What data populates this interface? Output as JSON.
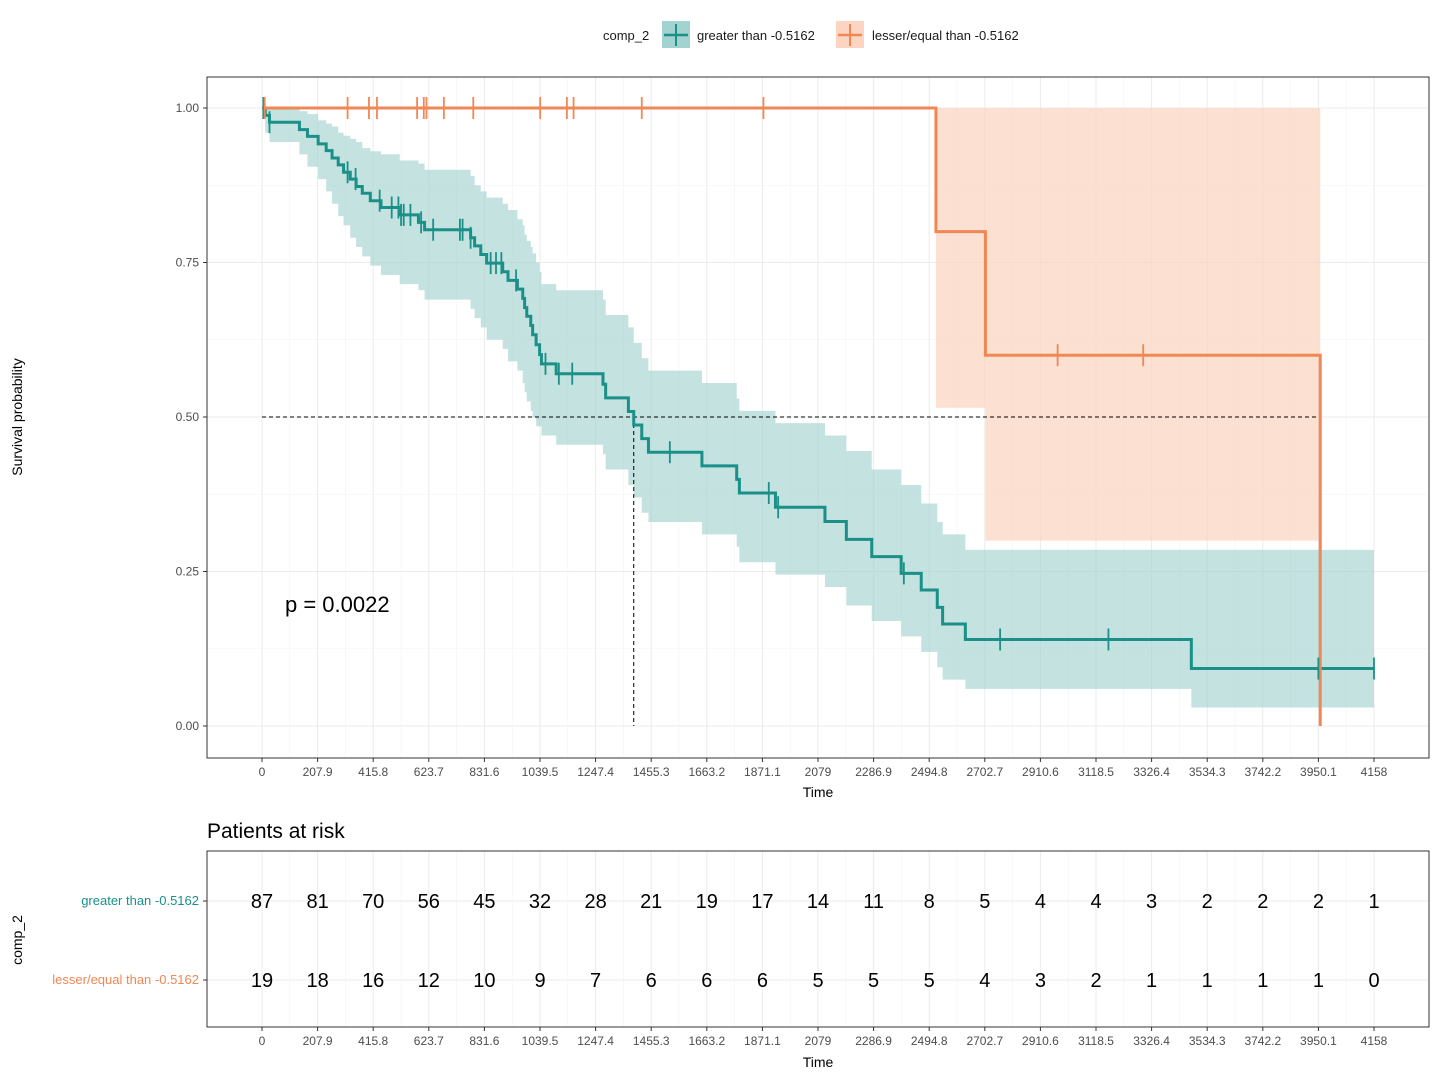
{
  "chart_data": [
    {
      "type": "line",
      "subtype": "kaplan-meier",
      "title": "",
      "xlabel": "Time",
      "ylabel": "Survival probability",
      "xlim": [
        0,
        4158
      ],
      "ylim": [
        0,
        1
      ],
      "x_ticks": [
        "0",
        "207.9",
        "415.8",
        "623.7",
        "831.6",
        "1039.5",
        "1247.4",
        "1455.3",
        "1663.2",
        "1871.1",
        "2079",
        "2286.9",
        "2494.8",
        "2702.7",
        "2910.6",
        "3118.5",
        "3326.4",
        "3534.3",
        "3742.2",
        "3950.1",
        "4158"
      ],
      "y_ticks": [
        "0.00",
        "0.25",
        "0.50",
        "0.75",
        "1.00"
      ],
      "grid": true,
      "legend": {
        "title": "comp_2",
        "position": "top"
      },
      "annotation": "p = 0.0022",
      "median_line": {
        "y": 0.5,
        "x_end": 3957,
        "medians": [
          1390,
          3957
        ]
      },
      "series": [
        {
          "name": "greater than -0.5162",
          "color": "#1a9088",
          "fill": "#a3d3d0",
          "steps": [
            [
              0,
              1.0
            ],
            [
              12,
              0.988
            ],
            [
              28,
              0.977
            ],
            [
              140,
              0.965
            ],
            [
              170,
              0.954
            ],
            [
              210,
              0.942
            ],
            [
              240,
              0.931
            ],
            [
              262,
              0.919
            ],
            [
              285,
              0.908
            ],
            [
              305,
              0.896
            ],
            [
              330,
              0.885
            ],
            [
              352,
              0.873
            ],
            [
              375,
              0.862
            ],
            [
              405,
              0.85
            ],
            [
              445,
              0.839
            ],
            [
              515,
              0.827
            ],
            [
              585,
              0.815
            ],
            [
              608,
              0.803
            ],
            [
              780,
              0.79
            ],
            [
              795,
              0.777
            ],
            [
              818,
              0.763
            ],
            [
              840,
              0.749
            ],
            [
              900,
              0.735
            ],
            [
              920,
              0.721
            ],
            [
              955,
              0.707
            ],
            [
              975,
              0.692
            ],
            [
              982,
              0.677
            ],
            [
              990,
              0.663
            ],
            [
              1005,
              0.648
            ],
            [
              1012,
              0.633
            ],
            [
              1025,
              0.617
            ],
            [
              1038,
              0.601
            ],
            [
              1045,
              0.586
            ],
            [
              1100,
              0.57
            ],
            [
              1275,
              0.553
            ],
            [
              1285,
              0.531
            ],
            [
              1370,
              0.509
            ],
            [
              1390,
              0.487
            ],
            [
              1420,
              0.465
            ],
            [
              1445,
              0.443
            ],
            [
              1645,
              0.421
            ],
            [
              1775,
              0.399
            ],
            [
              1785,
              0.377
            ],
            [
              1920,
              0.354
            ],
            [
              2105,
              0.331
            ],
            [
              2185,
              0.302
            ],
            [
              2280,
              0.274
            ],
            [
              2390,
              0.247
            ],
            [
              2465,
              0.22
            ],
            [
              2525,
              0.192
            ],
            [
              2545,
              0.165
            ],
            [
              2630,
              0.14
            ],
            [
              3475,
              0.093
            ],
            [
              4158,
              0.093
            ]
          ],
          "lower": [
            [
              0,
              1.0
            ],
            [
              12,
              0.96
            ],
            [
              28,
              0.945
            ],
            [
              140,
              0.925
            ],
            [
              170,
              0.905
            ],
            [
              210,
              0.885
            ],
            [
              240,
              0.865
            ],
            [
              262,
              0.845
            ],
            [
              285,
              0.825
            ],
            [
              305,
              0.81
            ],
            [
              330,
              0.79
            ],
            [
              352,
              0.775
            ],
            [
              375,
              0.76
            ],
            [
              405,
              0.745
            ],
            [
              445,
              0.73
            ],
            [
              515,
              0.715
            ],
            [
              585,
              0.705
            ],
            [
              608,
              0.69
            ],
            [
              780,
              0.675
            ],
            [
              795,
              0.66
            ],
            [
              818,
              0.645
            ],
            [
              840,
              0.625
            ],
            [
              900,
              0.61
            ],
            [
              920,
              0.59
            ],
            [
              955,
              0.575
            ],
            [
              975,
              0.555
            ],
            [
              982,
              0.54
            ],
            [
              990,
              0.525
            ],
            [
              1005,
              0.51
            ],
            [
              1012,
              0.5
            ],
            [
              1025,
              0.485
            ],
            [
              1045,
              0.47
            ],
            [
              1100,
              0.455
            ],
            [
              1275,
              0.44
            ],
            [
              1285,
              0.415
            ],
            [
              1370,
              0.39
            ],
            [
              1390,
              0.37
            ],
            [
              1420,
              0.345
            ],
            [
              1445,
              0.33
            ],
            [
              1645,
              0.31
            ],
            [
              1775,
              0.29
            ],
            [
              1785,
              0.265
            ],
            [
              1920,
              0.245
            ],
            [
              2105,
              0.225
            ],
            [
              2185,
              0.195
            ],
            [
              2280,
              0.17
            ],
            [
              2390,
              0.145
            ],
            [
              2465,
              0.12
            ],
            [
              2525,
              0.095
            ],
            [
              2545,
              0.075
            ],
            [
              2630,
              0.06
            ],
            [
              3475,
              0.03
            ],
            [
              4158,
              0.03
            ]
          ],
          "upper": [
            [
              0,
              1.0
            ],
            [
              12,
              1.0
            ],
            [
              140,
              0.995
            ],
            [
              170,
              0.99
            ],
            [
              210,
              0.98
            ],
            [
              240,
              0.975
            ],
            [
              262,
              0.97
            ],
            [
              285,
              0.96
            ],
            [
              305,
              0.955
            ],
            [
              330,
              0.95
            ],
            [
              352,
              0.945
            ],
            [
              375,
              0.935
            ],
            [
              405,
              0.93
            ],
            [
              445,
              0.925
            ],
            [
              515,
              0.915
            ],
            [
              585,
              0.91
            ],
            [
              608,
              0.9
            ],
            [
              780,
              0.89
            ],
            [
              795,
              0.875
            ],
            [
              818,
              0.865
            ],
            [
              840,
              0.855
            ],
            [
              900,
              0.845
            ],
            [
              920,
              0.835
            ],
            [
              955,
              0.82
            ],
            [
              975,
              0.81
            ],
            [
              982,
              0.795
            ],
            [
              990,
              0.785
            ],
            [
              1005,
              0.775
            ],
            [
              1012,
              0.765
            ],
            [
              1025,
              0.75
            ],
            [
              1038,
              0.735
            ],
            [
              1045,
              0.715
            ],
            [
              1100,
              0.705
            ],
            [
              1275,
              0.69
            ],
            [
              1285,
              0.665
            ],
            [
              1370,
              0.645
            ],
            [
              1390,
              0.62
            ],
            [
              1420,
              0.595
            ],
            [
              1445,
              0.575
            ],
            [
              1645,
              0.555
            ],
            [
              1775,
              0.53
            ],
            [
              1785,
              0.51
            ],
            [
              1920,
              0.49
            ],
            [
              2105,
              0.47
            ],
            [
              2185,
              0.445
            ],
            [
              2280,
              0.415
            ],
            [
              2390,
              0.39
            ],
            [
              2465,
              0.36
            ],
            [
              2525,
              0.33
            ],
            [
              2545,
              0.31
            ],
            [
              2630,
              0.285
            ],
            [
              3475,
              0.285
            ],
            [
              4158,
              0.285
            ]
          ],
          "censor_times": [
            5,
            28,
            320,
            350,
            440,
            485,
            510,
            520,
            530,
            555,
            595,
            640,
            740,
            750,
            780,
            855,
            875,
            895,
            950,
            1060,
            1110,
            1160,
            1525,
            1895,
            1930,
            2400,
            2760,
            3165,
            3950,
            4158
          ]
        },
        {
          "name": "lesser/equal than -0.5162",
          "color": "#f08754",
          "fill": "#fbd5c1",
          "steps": [
            [
              0,
              1.0
            ],
            [
              2520,
              0.8
            ],
            [
              2705,
              0.6
            ],
            [
              3957,
              0.0
            ]
          ],
          "lower": [
            [
              0,
              1.0
            ],
            [
              2520,
              0.515
            ],
            [
              2705,
              0.3
            ],
            [
              3957,
              0.0
            ]
          ],
          "upper": [
            [
              0,
              1.0
            ],
            [
              3957,
              1.0
            ]
          ],
          "censor_times": [
            10,
            320,
            400,
            430,
            580,
            605,
            615,
            680,
            790,
            1040,
            1140,
            1165,
            1420,
            1875,
            2975,
            3295
          ]
        }
      ]
    },
    {
      "type": "table",
      "title": "Patients at risk",
      "xlabel": "Time",
      "ylabel": "comp_2",
      "time_points": [
        "0",
        "207.9",
        "415.8",
        "623.7",
        "831.6",
        "1039.5",
        "1247.4",
        "1455.3",
        "1663.2",
        "1871.1",
        "2079",
        "2286.9",
        "2494.8",
        "2702.7",
        "2910.6",
        "3118.5",
        "3326.4",
        "3534.3",
        "3742.2",
        "3950.1",
        "4158"
      ],
      "rows": [
        {
          "label": "greater than -0.5162",
          "color": "#1a9088",
          "values": [
            87,
            81,
            70,
            56,
            45,
            32,
            28,
            21,
            19,
            17,
            14,
            11,
            8,
            5,
            4,
            4,
            3,
            2,
            2,
            2,
            1
          ]
        },
        {
          "label": "lesser/equal  than -0.5162",
          "color": "#f08754",
          "values": [
            19,
            18,
            16,
            12,
            10,
            9,
            7,
            6,
            6,
            6,
            5,
            5,
            5,
            4,
            3,
            2,
            1,
            1,
            1,
            1,
            0
          ]
        }
      ]
    }
  ]
}
